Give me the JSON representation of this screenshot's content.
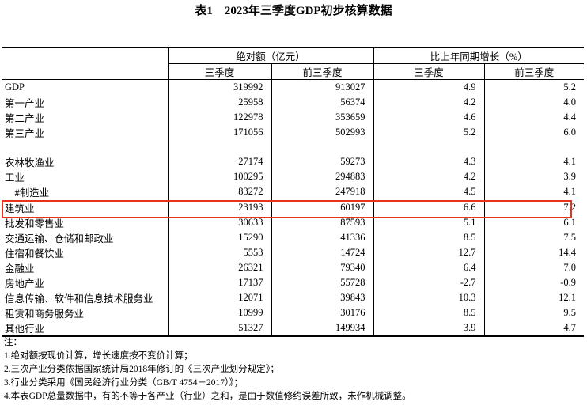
{
  "title": "表1　2023年三季度GDP初步核算数据",
  "headers": {
    "group1": "绝对额（亿元）",
    "group2": "比上年同期增长（%）",
    "q3": "三季度",
    "q1_3": "前三季度"
  },
  "rows": [
    {
      "name": "GDP",
      "a": "319992",
      "b": "913027",
      "c": "4.9",
      "d": "5.2"
    },
    {
      "name": "第一产业",
      "a": "25958",
      "b": "56374",
      "c": "4.2",
      "d": "4.0"
    },
    {
      "name": "第二产业",
      "a": "122978",
      "b": "353659",
      "c": "4.6",
      "d": "4.4"
    },
    {
      "name": "第三产业",
      "a": "171056",
      "b": "502993",
      "c": "5.2",
      "d": "6.0"
    },
    {
      "name": "",
      "a": "",
      "b": "",
      "c": "",
      "d": ""
    },
    {
      "name": "农林牧渔业",
      "a": "27174",
      "b": "59273",
      "c": "4.3",
      "d": "4.1"
    },
    {
      "name": "工业",
      "a": "100295",
      "b": "294883",
      "c": "4.2",
      "d": "3.9"
    },
    {
      "name": "　#制造业",
      "a": "83272",
      "b": "247918",
      "c": "4.5",
      "d": "4.1"
    },
    {
      "name": "建筑业",
      "a": "23193",
      "b": "60197",
      "c": "6.6",
      "d": "7.2",
      "highlighted": true
    },
    {
      "name": "批发和零售业",
      "a": "30633",
      "b": "87593",
      "c": "5.1",
      "d": "6.1"
    },
    {
      "name": "交通运输、仓储和邮政业",
      "a": "15290",
      "b": "41336",
      "c": "8.5",
      "d": "7.5"
    },
    {
      "name": "住宿和餐饮业",
      "a": "5553",
      "b": "14724",
      "c": "12.7",
      "d": "14.4"
    },
    {
      "name": "金融业",
      "a": "26321",
      "b": "79340",
      "c": "6.4",
      "d": "7.0"
    },
    {
      "name": "房地产业",
      "a": "17137",
      "b": "55728",
      "c": "-2.7",
      "d": "-0.9"
    },
    {
      "name": "信息传输、软件和信息技术服务业",
      "a": "12071",
      "b": "39843",
      "c": "10.3",
      "d": "12.1"
    },
    {
      "name": "租赁和商务服务业",
      "a": "10999",
      "b": "30176",
      "c": "8.5",
      "d": "9.5"
    },
    {
      "name": "其他行业",
      "a": "51327",
      "b": "149934",
      "c": "3.9",
      "d": "4.7"
    }
  ],
  "highlight_color": "#e8321e",
  "notes": [
    "注：",
    "1.绝对额按现价计算，增长速度按不变价计算；",
    "2.三次产业分类依据国家统计局2018年修订的《三次产业划分规定》；",
    "3.行业分类采用《国民经济行业分类（GB/T 4754－2017）》；",
    "4.本表GDP总量数据中，有的不等于各产业（行业）之和，是由于数值修约误差所致，未作机械调整。"
  ]
}
